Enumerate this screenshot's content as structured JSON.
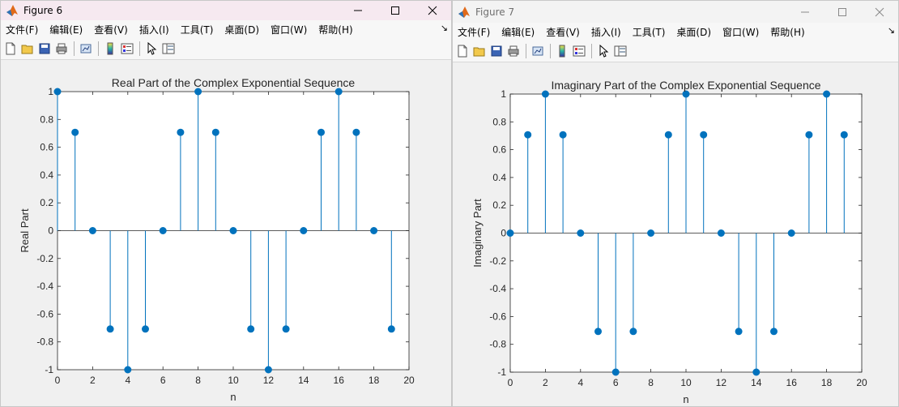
{
  "windows": [
    {
      "id": "win1",
      "title": "Figure 6",
      "menu": [
        "文件(F)",
        "编辑(E)",
        "查看(V)",
        "插入(I)",
        "工具(T)",
        "桌面(D)",
        "窗口(W)",
        "帮助(H)"
      ],
      "menu_arrow": "↘",
      "toolbar": [
        "new-figure-icon",
        "open-file-icon",
        "save-icon",
        "print-icon",
        "link-plot-icon",
        "colorbar-icon",
        "legend-icon",
        "edit-plot-icon",
        "property-inspector-icon"
      ],
      "controls": [
        "minimize-icon",
        "maximize-icon",
        "close-icon"
      ],
      "active": true
    },
    {
      "id": "win2",
      "title": "Figure 7",
      "menu": [
        "文件(F)",
        "编辑(E)",
        "查看(V)",
        "插入(I)",
        "工具(T)",
        "桌面(D)",
        "窗口(W)",
        "帮助(H)"
      ],
      "menu_arrow": "↘",
      "toolbar": [
        "new-figure-icon",
        "open-file-icon",
        "save-icon",
        "print-icon",
        "link-plot-icon",
        "colorbar-icon",
        "legend-icon",
        "edit-plot-icon",
        "property-inspector-icon"
      ],
      "controls": [
        "minimize-icon",
        "maximize-icon",
        "close-icon"
      ],
      "active": false
    }
  ],
  "colors": {
    "stem": "#0072bd",
    "axes_bg": "#ffffff",
    "figure_bg": "#f0f0f0"
  },
  "chart_data": [
    {
      "type": "stem",
      "title": "Real Part of the Complex Exponential Sequence",
      "xlabel": "n",
      "ylabel": "Real Part",
      "xlim": [
        0,
        20
      ],
      "ylim": [
        -1,
        1
      ],
      "xticks": [
        "0",
        "2",
        "4",
        "6",
        "8",
        "10",
        "12",
        "14",
        "16",
        "18",
        "20"
      ],
      "yticks": [
        "1",
        "0.8",
        "0.6",
        "0.4",
        "0.2",
        "0",
        "-0.2",
        "-0.4",
        "-0.6",
        "-0.8",
        "-1"
      ],
      "x": [
        0,
        1,
        2,
        3,
        4,
        5,
        6,
        7,
        8,
        9,
        10,
        11,
        12,
        13,
        14,
        15,
        16,
        17,
        18,
        19
      ],
      "values": [
        1,
        0.7071,
        0,
        -0.7071,
        -1,
        -0.7071,
        0,
        0.7071,
        1,
        0.7071,
        0,
        -0.7071,
        -1,
        -0.7071,
        0,
        0.7071,
        1,
        0.7071,
        0,
        -0.7071
      ],
      "grid": false
    },
    {
      "type": "stem",
      "title": "Imaginary Part of the Complex Exponential Sequence",
      "xlabel": "n",
      "ylabel": "Imaginary Part",
      "xlim": [
        0,
        20
      ],
      "ylim": [
        -1,
        1
      ],
      "xticks": [
        "0",
        "2",
        "4",
        "6",
        "8",
        "10",
        "12",
        "14",
        "16",
        "18",
        "20"
      ],
      "yticks": [
        "1",
        "0.8",
        "0.6",
        "0.4",
        "0.2",
        "0",
        "-0.2",
        "-0.4",
        "-0.6",
        "-0.8",
        "-1"
      ],
      "x": [
        0,
        1,
        2,
        3,
        4,
        5,
        6,
        7,
        8,
        9,
        10,
        11,
        12,
        13,
        14,
        15,
        16,
        17,
        18,
        19
      ],
      "values": [
        0,
        0.7071,
        1,
        0.7071,
        0,
        -0.7071,
        -1,
        -0.7071,
        0,
        0.7071,
        1,
        0.7071,
        0,
        -0.7071,
        -1,
        -0.7071,
        0,
        0.7071,
        1,
        0.7071
      ],
      "grid": false
    }
  ]
}
